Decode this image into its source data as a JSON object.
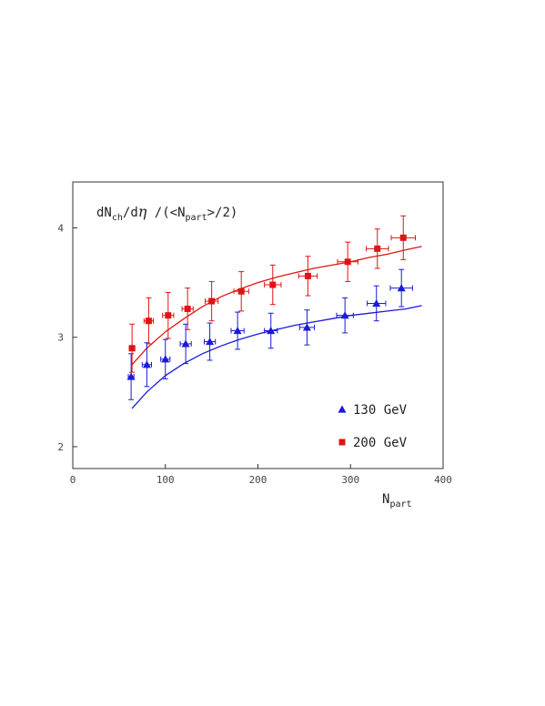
{
  "chart_data": {
    "type": "scatter",
    "title": {
      "p1": "dN",
      "p1_sub": "ch",
      "p2": "/d",
      "p2_greek": "η",
      "p3": " /(<N",
      "p3_sub": "part",
      "p4": ">/2)"
    },
    "xlabel": {
      "main": "N",
      "sub": "part"
    },
    "ylabel": "",
    "xlim": [
      0,
      400
    ],
    "ylim": [
      1.8,
      4.42
    ],
    "x_ticks": [
      0,
      100,
      200,
      300,
      400
    ],
    "x_tick_labels": [
      "0",
      "100",
      "200",
      "300",
      "400"
    ],
    "y_ticks": [
      2,
      3,
      4
    ],
    "y_tick_labels": [
      "2",
      "3",
      "4"
    ],
    "grid": false,
    "legend_position": "bottom-right",
    "series": [
      {
        "name": "130 GeV",
        "marker": "triangle",
        "color": "#1a1adc",
        "points": [
          {
            "x": 63,
            "y": 2.64,
            "xerr": 3,
            "yerr": 0.21
          },
          {
            "x": 80,
            "y": 2.75,
            "xerr": 5,
            "yerr": 0.2
          },
          {
            "x": 100,
            "y": 2.8,
            "xerr": 5,
            "yerr": 0.18
          },
          {
            "x": 122,
            "y": 2.94,
            "xerr": 6,
            "yerr": 0.18
          },
          {
            "x": 148,
            "y": 2.96,
            "xerr": 6,
            "yerr": 0.17
          },
          {
            "x": 178,
            "y": 3.06,
            "xerr": 7,
            "yerr": 0.17
          },
          {
            "x": 214,
            "y": 3.06,
            "xerr": 7,
            "yerr": 0.16
          },
          {
            "x": 253,
            "y": 3.09,
            "xerr": 8,
            "yerr": 0.16
          },
          {
            "x": 294,
            "y": 3.2,
            "xerr": 9,
            "yerr": 0.16
          },
          {
            "x": 328,
            "y": 3.31,
            "xerr": 10,
            "yerr": 0.16
          },
          {
            "x": 355,
            "y": 3.45,
            "xerr": 12,
            "yerr": 0.17
          }
        ],
        "curve": [
          [
            64,
            2.35
          ],
          [
            80,
            2.5
          ],
          [
            100,
            2.65
          ],
          [
            120,
            2.76
          ],
          [
            140,
            2.85
          ],
          [
            160,
            2.92
          ],
          [
            180,
            2.98
          ],
          [
            200,
            3.03
          ],
          [
            220,
            3.07
          ],
          [
            240,
            3.11
          ],
          [
            260,
            3.14
          ],
          [
            280,
            3.17
          ],
          [
            300,
            3.2
          ],
          [
            320,
            3.22
          ],
          [
            340,
            3.24
          ],
          [
            360,
            3.26
          ],
          [
            377,
            3.29
          ]
        ]
      },
      {
        "name": "200 GeV",
        "marker": "square",
        "color": "#e01414",
        "points": [
          {
            "x": 64,
            "y": 2.9,
            "xerr": 3,
            "yerr": 0.22
          },
          {
            "x": 82,
            "y": 3.15,
            "xerr": 5,
            "yerr": 0.21
          },
          {
            "x": 103,
            "y": 3.2,
            "xerr": 6,
            "yerr": 0.21
          },
          {
            "x": 124,
            "y": 3.26,
            "xerr": 6,
            "yerr": 0.19
          },
          {
            "x": 150,
            "y": 3.33,
            "xerr": 7,
            "yerr": 0.18
          },
          {
            "x": 182,
            "y": 3.42,
            "xerr": 8,
            "yerr": 0.18
          },
          {
            "x": 216,
            "y": 3.48,
            "xerr": 9,
            "yerr": 0.18
          },
          {
            "x": 254,
            "y": 3.56,
            "xerr": 10,
            "yerr": 0.18
          },
          {
            "x": 297,
            "y": 3.69,
            "xerr": 11,
            "yerr": 0.18
          },
          {
            "x": 329,
            "y": 3.81,
            "xerr": 12,
            "yerr": 0.18
          },
          {
            "x": 357,
            "y": 3.91,
            "xerr": 13,
            "yerr": 0.2
          }
        ],
        "curve": [
          [
            64,
            2.75
          ],
          [
            80,
            2.9
          ],
          [
            100,
            3.05
          ],
          [
            120,
            3.17
          ],
          [
            140,
            3.28
          ],
          [
            160,
            3.37
          ],
          [
            180,
            3.44
          ],
          [
            200,
            3.5
          ],
          [
            220,
            3.55
          ],
          [
            240,
            3.59
          ],
          [
            260,
            3.63
          ],
          [
            280,
            3.66
          ],
          [
            300,
            3.69
          ],
          [
            320,
            3.73
          ],
          [
            340,
            3.76
          ],
          [
            360,
            3.8
          ],
          [
            377,
            3.83
          ]
        ]
      }
    ]
  }
}
